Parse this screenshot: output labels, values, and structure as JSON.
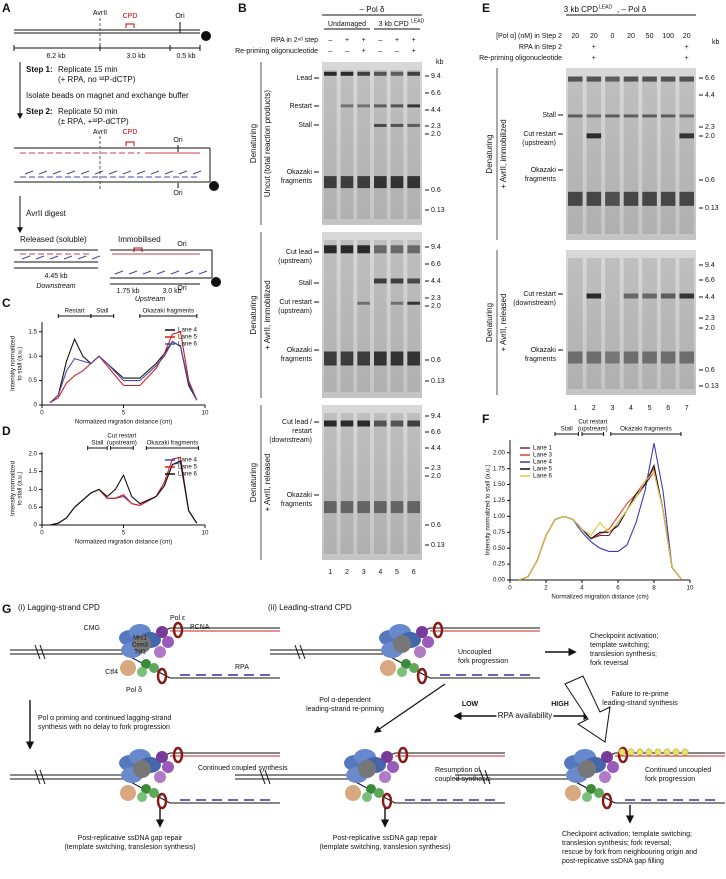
{
  "panel_labels": [
    "A",
    "B",
    "C",
    "D",
    "E",
    "F",
    "G"
  ],
  "panel_a": {
    "avrii": [
      "AvrII",
      "AvrII"
    ],
    "cpd": [
      "CPD",
      "CPD"
    ],
    "ori": [
      "Ori",
      "Ori",
      "Ori",
      "Ori",
      "Ori"
    ],
    "lengths": [
      "6.2 kb",
      "3.0 kb",
      "0.5 kb"
    ],
    "step1": "Step 1:",
    "step1_text": "Replicate 15 min",
    "step1_conditions": "(+ RPA, no ³²P-dCTP)",
    "exchange": "Isolate beads on magnet and exchange buffer",
    "step2": "Step 2:",
    "step2_text": "Replicate 50 min",
    "step2_conditions": "(± RPA, +³²P-dCTP)",
    "digest": "AvrII digest",
    "released": "Released (soluble)",
    "immobilised": "Immobilised",
    "released_length": "4.45 kb",
    "released_name": "Downstream",
    "immobilised_lengths": [
      "1.75 kb",
      "3.0 kb"
    ],
    "immobilised_name": "Upstream"
  },
  "panel_b": {
    "header": "– Pol δ",
    "groups": [
      "Undamaged",
      "3 kb CPD"
    ],
    "group_superscript": "LEAD",
    "rows": [
      "RPA in 2ⁿᵈ step",
      "Re-priming oligonucleotide"
    ],
    "rpa": [
      "–",
      "+",
      "+",
      "–",
      "+",
      "+"
    ],
    "oligo": [
      "–",
      "–",
      "+",
      "–",
      "–",
      "+"
    ],
    "condition": [
      "Denaturing",
      "Denaturing",
      "Denaturing"
    ],
    "sections": [
      "Uncut (total reaction products)",
      "+ AvrII, immobilized",
      "+ AvrII, released"
    ],
    "gel_1_bands": [
      [
        "Lead"
      ],
      [
        "Restart"
      ],
      [
        "Stall"
      ],
      [
        "Okazaki",
        "fragments"
      ]
    ],
    "gel_2_bands": [
      [
        "Cut lead",
        "(upstream)"
      ],
      [
        "Stall"
      ],
      [
        "Cut restart",
        "(upstream)"
      ],
      [
        "Okazaki",
        "fragments"
      ]
    ],
    "gel_3_bands": [
      [
        "Cut lead /",
        "restart",
        "(downstream)"
      ],
      [
        "Okazaki",
        "fragments"
      ]
    ],
    "kb": "kb",
    "markers_1": [
      "9.4",
      "6.6",
      "4.4",
      "2.3",
      "2.0",
      "0.6",
      "0.13"
    ],
    "markers_2": [
      "9.4",
      "6.6",
      "4.4",
      "2.3",
      "2.0",
      "0.6",
      "0.13"
    ],
    "markers_3": [
      "9.4",
      "6.6",
      "4.4",
      "2.3",
      "2.0",
      "0.6",
      "0.13"
    ],
    "lanes": [
      "1",
      "2",
      "3",
      "4",
      "5",
      "6"
    ]
  },
  "panel_e": {
    "title": "3 kb CPD",
    "title_superscript": "LEAD",
    "title_rest": ", – Pol δ",
    "rows": [
      "[Pol α] (nM) in Step 2",
      "RPA in Step 2",
      "Re-priming oligonucleotide"
    ],
    "pol_alpha": [
      "20",
      "20",
      "0",
      "20",
      "50",
      "100",
      "20"
    ],
    "rpa": [
      null,
      "+",
      null,
      null,
      null,
      null,
      "+"
    ],
    "oligo": [
      null,
      "+",
      null,
      null,
      null,
      null,
      "+"
    ],
    "condition": [
      "Denaturing",
      "Denaturing"
    ],
    "sections": [
      "+ AvrII, immobilized",
      "+ AvrII, released"
    ],
    "gel_1_bands": [
      [
        "Stall"
      ],
      [
        "Cut restart",
        "(upstream)"
      ],
      [
        "Okazaki",
        "fragments"
      ]
    ],
    "gel_2_bands": [
      [
        "Cut restart",
        "(downstream)"
      ],
      [
        "Okazaki",
        "fragments"
      ]
    ],
    "kb": "kb",
    "markers_1": [
      "6.6",
      "4.4",
      "2.3",
      "2.0",
      "0.6",
      "0.13"
    ],
    "markers_2": [
      "9.4",
      "6.6",
      "4.4",
      "2.3",
      "2.0",
      "0.6",
      "0.13"
    ],
    "lanes": [
      "1",
      "2",
      "3",
      "4",
      "5",
      "6",
      "7"
    ]
  },
  "panel_g": {
    "lagging_title": "(i) Lagging-strand CPD",
    "cmg": "CMG",
    "pol_epsilon": "Pol ε",
    "pcna": "PCNA",
    "mrc1": [
      "Mrc1",
      "Csm3",
      "Tof1"
    ],
    "ctf4": "Ctf4",
    "pol_delta": "Pol δ",
    "rpa": "RPA",
    "lagging_step": [
      "Pol α priming and continued lagging-strand",
      "synthesis with no delay to fork progression"
    ],
    "continued_coupled": "Continued coupled synthesis",
    "lagging_outcome": [
      "Post-replicative ssDNA gap repair",
      "(template switching, translesion synthesis)"
    ],
    "leading_title": "(ii) Leading-strand CPD",
    "uncoupled": [
      "Uncoupled",
      "fork progression"
    ],
    "uncoupled_outcome": [
      "Checkpoint activation;",
      "template switching;",
      "translesion synthesis;",
      "fork reversal"
    ],
    "repriming": [
      "Pol α-dependent",
      "leading-strand re-priming"
    ],
    "low": "LOW",
    "rpa_availability": "RPA availability",
    "high": "HIGH",
    "failure": [
      "Failure to re-prime",
      "leading-strand synthesis"
    ],
    "resumption": [
      "Resumption of",
      "coupled synthesis"
    ],
    "continued_uncoupled": [
      "Continued uncoupled",
      "fork progression"
    ],
    "leading_outcome": [
      "Post-replicative ssDNA gap repair",
      "(template switching, translesion synthesis)"
    ],
    "high_outcome": [
      "Checkpoint activation; template switching;",
      "translesion synthesis; fork reversal;",
      "rescue by fork from neighbouring origin and",
      "post-replicative ssDNA gap filling"
    ]
  },
  "chart_data": [
    {
      "type": "line",
      "x_label": "Normalized migration distance (cm)",
      "y_label": [
        "Intensity normalized",
        "to stall (a.u.)"
      ],
      "annotations": [
        "Restart",
        "Stall",
        "Okazaki fragments"
      ],
      "xlim": [
        0,
        10
      ],
      "ylim": [
        0,
        1.7
      ],
      "xticks": [
        0,
        5,
        10
      ],
      "yticks": [
        0,
        0.5,
        {
          "value": 1,
          "label": "1.0"
        },
        1.5
      ],
      "legend": "upper right",
      "x": [
        0.5,
        1,
        1.5,
        2,
        2.5,
        3,
        3.5,
        4,
        5,
        6,
        7,
        7.5,
        8,
        8.5,
        9,
        9.5
      ],
      "series": [
        {
          "name": "Lane 4",
          "color": "#111111",
          "values": [
            0.05,
            0.2,
            0.9,
            1.35,
            1.0,
            0.85,
            1.0,
            0.85,
            0.55,
            0.55,
            0.85,
            1.05,
            1.3,
            1.2,
            0.4,
            0.1
          ]
        },
        {
          "name": "Lane 5",
          "color": "#d62020",
          "values": [
            0.05,
            0.15,
            0.45,
            0.6,
            0.7,
            0.85,
            1.0,
            0.8,
            0.4,
            0.4,
            0.75,
            1.05,
            1.45,
            1.5,
            0.5,
            0.1
          ]
        },
        {
          "name": "Lane 6",
          "color": "#4a4aa8",
          "values": [
            0.05,
            0.2,
            0.7,
            0.95,
            0.9,
            0.85,
            1.0,
            0.85,
            0.5,
            0.5,
            0.8,
            1.0,
            1.3,
            1.2,
            0.45,
            0.1
          ]
        }
      ]
    },
    {
      "type": "line",
      "x_label": "Normalized migration distance (cm)",
      "y_label": [
        "Intensity normalized",
        "to stall (a.u.)"
      ],
      "annotations": [
        "Stall",
        [
          "Cut restart",
          "(upstream)"
        ],
        "Okazaki fragments"
      ],
      "xlim": [
        0,
        10
      ],
      "ylim": [
        0,
        2.05
      ],
      "xticks": [
        0,
        5,
        10
      ],
      "yticks": [
        0,
        0.5,
        {
          "value": 1,
          "label": "1.0"
        },
        1.5,
        {
          "value": 2,
          "label": "2.0"
        }
      ],
      "legend": "upper right",
      "x": [
        0.5,
        1,
        1.5,
        2,
        2.5,
        3,
        3.5,
        4,
        4.5,
        5,
        5.5,
        6,
        7,
        7.5,
        8,
        8.5,
        9,
        9.5
      ],
      "series": [
        {
          "name": "Lane 4",
          "color": "#4a4aa8",
          "values": [
            0,
            0.05,
            0.2,
            0.5,
            0.7,
            0.9,
            1.0,
            0.75,
            0.75,
            0.8,
            0.6,
            0.55,
            0.8,
            1.1,
            1.7,
            1.75,
            0.4,
            0.05
          ]
        },
        {
          "name": "Lane 5",
          "color": "#d62020",
          "values": [
            0,
            0.05,
            0.2,
            0.5,
            0.7,
            0.9,
            1.0,
            0.75,
            0.75,
            0.85,
            0.6,
            0.55,
            0.8,
            1.2,
            1.85,
            1.9,
            0.4,
            0.05
          ]
        },
        {
          "name": "Lane 6",
          "color": "#111111",
          "values": [
            0,
            0.05,
            0.2,
            0.5,
            0.7,
            0.9,
            1.0,
            0.8,
            1.0,
            1.4,
            0.8,
            0.6,
            0.8,
            1.1,
            1.7,
            1.8,
            0.4,
            0.05
          ]
        }
      ]
    },
    {
      "type": "line",
      "x_label": "Normalized migration distance (cm)",
      "y_label": [
        "Intensity normalized to stall (a.u.)"
      ],
      "annotations": [
        "Stall",
        [
          "Cut restart",
          "(upstream)"
        ],
        "Okazaki fragments"
      ],
      "xlim": [
        0,
        10
      ],
      "ylim": [
        0,
        2.2
      ],
      "xticks": [
        0,
        2,
        4,
        6,
        8,
        10
      ],
      "yticks": [
        {
          "value": 0,
          "label": "0.00"
        },
        {
          "value": 0.25,
          "label": "0.25"
        },
        {
          "value": 0.5,
          "label": "0.50"
        },
        {
          "value": 0.75,
          "label": "0.75"
        },
        {
          "value": 1,
          "label": "1.00"
        },
        {
          "value": 1.25,
          "label": "1.25"
        },
        {
          "value": 1.5,
          "label": "1.50"
        },
        {
          "value": 1.75,
          "label": "1.75"
        },
        {
          "value": 2,
          "label": "2.00"
        }
      ],
      "legend": "upper left",
      "x": [
        0.5,
        1,
        1.5,
        2,
        2.5,
        3,
        3.5,
        4,
        4.5,
        5,
        5.5,
        6,
        6.5,
        7,
        7.5,
        8,
        8.5,
        9,
        9.5
      ],
      "series": [
        {
          "name": "Lane 1",
          "color": "#7a1f5c",
          "values": [
            0,
            0.05,
            0.3,
            0.7,
            0.95,
            1.0,
            0.95,
            0.8,
            0.65,
            0.7,
            0.7,
            0.9,
            1.1,
            1.3,
            1.5,
            1.7,
            1.1,
            0.2,
            0.02
          ]
        },
        {
          "name": "Lane 3",
          "color": "#e0402a",
          "values": [
            0,
            0.05,
            0.3,
            0.7,
            0.95,
            1.0,
            0.95,
            0.8,
            0.65,
            0.72,
            0.8,
            1.0,
            1.2,
            1.35,
            1.55,
            1.75,
            1.1,
            0.2,
            0.02
          ]
        },
        {
          "name": "Lane 4",
          "color": "#3b3bb0",
          "values": [
            0,
            0.05,
            0.3,
            0.7,
            0.95,
            1.0,
            0.95,
            0.75,
            0.6,
            0.5,
            0.45,
            0.45,
            0.55,
            0.9,
            1.4,
            2.15,
            1.4,
            0.2,
            0.02
          ]
        },
        {
          "name": "Lane 5",
          "color": "#111111",
          "values": [
            0,
            0.05,
            0.3,
            0.7,
            0.95,
            1.0,
            0.95,
            0.8,
            0.65,
            0.75,
            0.75,
            0.85,
            1.1,
            1.35,
            1.5,
            1.8,
            1.1,
            0.2,
            0.02
          ]
        },
        {
          "name": "Lane 6",
          "color": "#e8c840",
          "values": [
            0,
            0.05,
            0.3,
            0.7,
            0.95,
            1.0,
            0.95,
            0.8,
            0.7,
            0.9,
            0.75,
            0.9,
            1.1,
            1.3,
            1.55,
            1.7,
            1.1,
            0.2,
            0.02
          ]
        }
      ]
    }
  ]
}
